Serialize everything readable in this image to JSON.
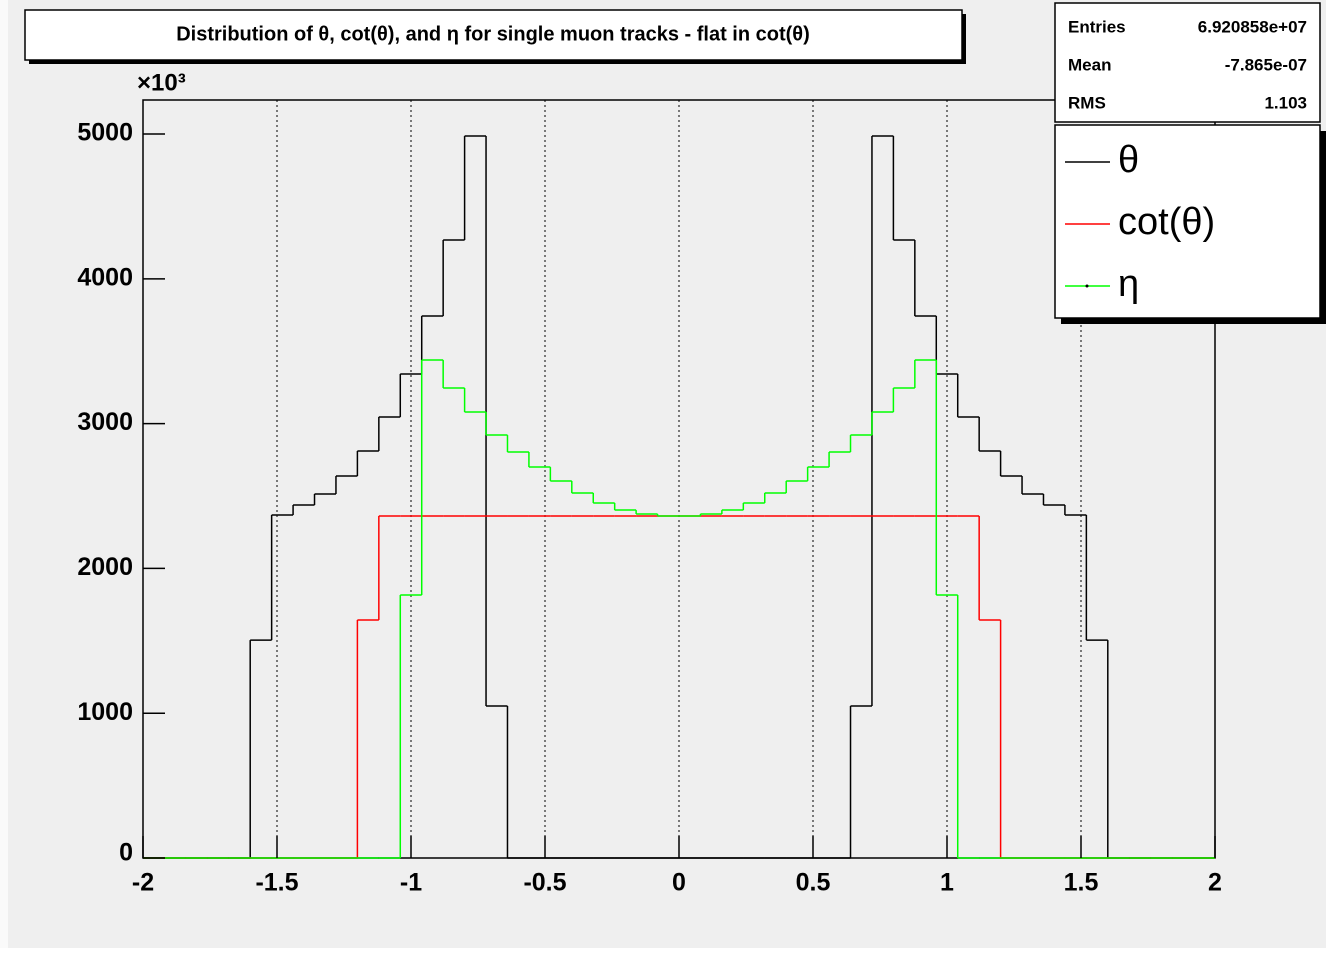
{
  "chart_data": {
    "type": "histogram",
    "title": "Distribution of θ, cot(θ), and η for single muon tracks - flat in cot(θ)",
    "y_multiplier": "×10³",
    "bins": [
      -2,
      -1.92,
      -1.84,
      -1.76,
      -1.68,
      -1.6,
      -1.52,
      -1.44,
      -1.36,
      -1.28,
      -1.2,
      -1.12,
      -1.04,
      -0.96,
      -0.88,
      -0.8,
      -0.72,
      -0.64,
      -0.56,
      -0.48,
      -0.4,
      -0.32,
      -0.24,
      -0.16,
      -0.08,
      0,
      0.08,
      0.16,
      0.24,
      0.32,
      0.4,
      0.48,
      0.56,
      0.64,
      0.72,
      0.8,
      0.88,
      0.96,
      1.04,
      1.12,
      1.2,
      1.28,
      1.36,
      1.44,
      1.52,
      1.6,
      1.68,
      1.76,
      1.84,
      1.92,
      2
    ],
    "series": [
      {
        "name": "θ",
        "color": "#000000",
        "values": [
          0,
          0,
          0,
          0,
          0,
          1505,
          2369,
          2438,
          2514,
          2638,
          2811,
          3046,
          3343,
          3743,
          4268,
          4986,
          1050,
          0,
          0,
          0,
          0,
          0,
          0,
          0,
          0,
          0,
          0,
          0,
          0,
          0,
          0,
          0,
          0,
          1050,
          4986,
          4268,
          3743,
          3343,
          3046,
          2811,
          2638,
          2514,
          2438,
          2369,
          1505,
          0,
          0,
          0,
          0,
          0
        ]
      },
      {
        "name": "cot(θ)",
        "color": "#ff0000",
        "values": [
          0,
          0,
          0,
          0,
          0,
          0,
          0,
          0,
          0,
          0,
          1644,
          2362,
          2362,
          2362,
          2362,
          2362,
          2362,
          2362,
          2362,
          2362,
          2362,
          2362,
          2362,
          2362,
          2362,
          2362,
          2362,
          2362,
          2362,
          2362,
          2362,
          2362,
          2362,
          2362,
          2362,
          2362,
          2362,
          2362,
          2362,
          1644,
          0,
          0,
          0,
          0,
          0,
          0,
          0,
          0,
          0,
          0
        ]
      },
      {
        "name": "η",
        "color": "#00ff00",
        "values": [
          0,
          0,
          0,
          0,
          0,
          0,
          0,
          0,
          0,
          0,
          0,
          0,
          1816,
          3439,
          3246,
          3080,
          2921,
          2804,
          2700,
          2604,
          2521,
          2452,
          2403,
          2376,
          2362,
          2362,
          2376,
          2403,
          2452,
          2521,
          2604,
          2700,
          2804,
          2921,
          3080,
          3246,
          3439,
          1816,
          0,
          0,
          0,
          0,
          0,
          0,
          0,
          0,
          0,
          0,
          0,
          0
        ]
      }
    ],
    "xlim": [
      -2,
      2
    ],
    "ylim": [
      0,
      5235
    ],
    "xticks": [
      -2,
      -1.5,
      -1,
      -0.5,
      0,
      0.5,
      1,
      1.5,
      2
    ],
    "yticks": [
      0,
      1000,
      2000,
      3000,
      4000,
      5000
    ],
    "grid": "x",
    "stats": [
      {
        "label": "Entries",
        "value": "6.920858e+07"
      },
      {
        "label": "Mean",
        "value": "-7.865e-07"
      },
      {
        "label": "RMS",
        "value": "1.103"
      }
    ]
  }
}
